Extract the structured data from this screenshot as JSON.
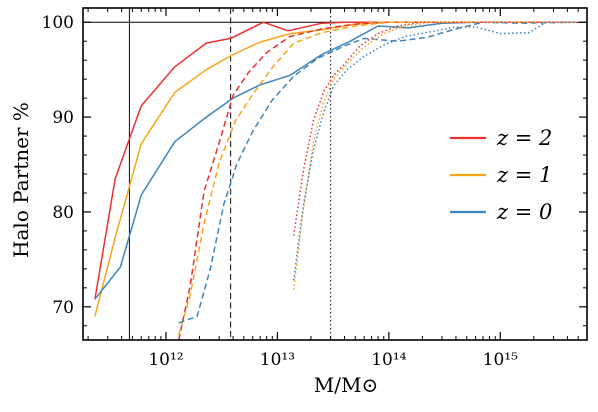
{
  "chart_data": {
    "type": "line",
    "xlabel": "M/M⊙",
    "ylabel": "Halo Partner %",
    "x_scale": "log",
    "xlim": [
      180000000000.0,
      6000000000000000.0
    ],
    "ylim": [
      66.5,
      101.5
    ],
    "x_ticks": [
      {
        "value": 1000000000000.0,
        "label": "10¹²"
      },
      {
        "value": 10000000000000.0,
        "label": "10¹³"
      },
      {
        "value": 100000000000000.0,
        "label": "10¹⁴"
      },
      {
        "value": 1000000000000000.0,
        "label": "10¹⁵"
      }
    ],
    "y_ticks": [
      70,
      80,
      90,
      100
    ],
    "hline": 100,
    "vlines": [
      {
        "x": 470000000000.0,
        "style": "solid"
      },
      {
        "x": 3800000000000.0,
        "style": "dashed"
      },
      {
        "x": 30000000000000.0,
        "style": "dotted"
      }
    ],
    "legend": {
      "position": "center-right",
      "entries": [
        {
          "label": "z = 2",
          "color": "#e8312f"
        },
        {
          "label": "z = 1",
          "color": "#f8a51c"
        },
        {
          "label": "z = 0",
          "color": "#3f84bb"
        }
      ]
    },
    "series": [
      {
        "name": "z = 2",
        "group": "solid",
        "color": "#e8312f",
        "x": [
          230000000000.0,
          350000000000.0,
          600000000000.0,
          1200000000000.0,
          2300000000000.0,
          3800000000000.0,
          7500000000000.0,
          12500000000000.0,
          25000000000000.0,
          40000000000000.0,
          80000000000000.0,
          5000000000000000.0
        ],
        "y": [
          70.8,
          83.5,
          91.2,
          95.3,
          97.8,
          98.3,
          100,
          99.1,
          99.9,
          100,
          100,
          100
        ]
      },
      {
        "name": "z = 1",
        "group": "solid",
        "color": "#f8a51c",
        "x": [
          230000000000.0,
          350000000000.0,
          600000000000.0,
          1200000000000.0,
          2300000000000.0,
          4000000000000.0,
          7000000000000.0,
          13000000000000.0,
          25000000000000.0,
          50000000000000.0,
          80000000000000.0,
          5000000000000000.0
        ],
        "y": [
          69.0,
          77.3,
          87.2,
          92.6,
          95.0,
          96.6,
          97.9,
          98.8,
          99.2,
          99.8,
          100,
          100
        ]
      },
      {
        "name": "z = 0",
        "group": "solid",
        "color": "#3f84bb",
        "x": [
          230000000000.0,
          390000000000.0,
          600000000000.0,
          1200000000000.0,
          2300000000000.0,
          4000000000000.0,
          7000000000000.0,
          13000000000000.0,
          25000000000000.0,
          45000000000000.0,
          80000000000000.0,
          150000000000000.0,
          300000000000000.0,
          600000000000000.0,
          5000000000000000.0
        ],
        "y": [
          70.8,
          74.2,
          81.8,
          87.4,
          90.0,
          92.0,
          93.4,
          94.4,
          96.6,
          98.0,
          99.6,
          99.4,
          99.9,
          100,
          100
        ]
      },
      {
        "name": "z = 2",
        "group": "dashed",
        "color": "#e8312f",
        "x": [
          1300000000000.0,
          1650000000000.0,
          2200000000000.0,
          3000000000000.0,
          4000000000000.0,
          5500000000000.0,
          8000000000000.0,
          13000000000000.0,
          25000000000000.0,
          50000000000000.0,
          100000000000000.0,
          5000000000000000.0
        ],
        "y": [
          66.5,
          72.2,
          82.2,
          87.3,
          92.3,
          94.7,
          96.8,
          98.5,
          99.3,
          99.8,
          100,
          100
        ]
      },
      {
        "name": "z = 1",
        "group": "dashed",
        "color": "#f8a51c",
        "x": [
          1300000000000.0,
          1650000000000.0,
          2200000000000.0,
          3000000000000.0,
          4200000000000.0,
          6000000000000.0,
          9000000000000.0,
          14000000000000.0,
          25000000000000.0,
          50000000000000.0,
          100000000000000.0,
          5000000000000000.0
        ],
        "y": [
          67.0,
          71.2,
          78.8,
          85.2,
          89.6,
          92.4,
          95.2,
          97.8,
          98.9,
          99.6,
          100,
          100
        ]
      },
      {
        "name": "z = 0",
        "group": "dashed",
        "color": "#3f84bb",
        "x": [
          1300000000000.0,
          1900000000000.0,
          2500000000000.0,
          3300000000000.0,
          4300000000000.0,
          6000000000000.0,
          9000000000000.0,
          14000000000000.0,
          23000000000000.0,
          40000000000000.0,
          60000000000000.0,
          120000000000000.0,
          220000000000000.0,
          400000000000000.0,
          700000000000000.0,
          1500000000000000.0,
          5000000000000000.0
        ],
        "y": [
          68.3,
          69.0,
          74.0,
          80.8,
          85.0,
          88.5,
          91.8,
          94.3,
          96.2,
          97.5,
          98.3,
          98.0,
          98.4,
          99.3,
          100,
          99.9,
          100
        ]
      },
      {
        "name": "z = 2",
        "group": "dotted",
        "color": "#e8312f",
        "x": [
          14000000000000.0,
          17000000000000.0,
          21000000000000.0,
          26000000000000.0,
          32000000000000.0,
          40000000000000.0,
          55000000000000.0,
          80000000000000.0,
          120000000000000.0,
          200000000000000.0,
          5000000000000000.0
        ],
        "y": [
          77.5,
          84.2,
          89.6,
          92.7,
          94.4,
          95.6,
          97.5,
          98.8,
          99.6,
          100,
          100
        ]
      },
      {
        "name": "z = 1",
        "group": "dotted",
        "color": "#f8a51c",
        "x": [
          14000000000000.0,
          17000000000000.0,
          21000000000000.0,
          26000000000000.0,
          32000000000000.0,
          42000000000000.0,
          60000000000000.0,
          90000000000000.0,
          140000000000000.0,
          250000000000000.0,
          5000000000000000.0
        ],
        "y": [
          71.8,
          80.0,
          87.3,
          91.6,
          94.0,
          95.6,
          97.4,
          98.8,
          99.6,
          100,
          100
        ]
      },
      {
        "name": "z = 0",
        "group": "dotted",
        "color": "#3f84bb",
        "x": [
          14000000000000.0,
          17000000000000.0,
          21000000000000.0,
          26000000000000.0,
          32000000000000.0,
          42000000000000.0,
          60000000000000.0,
          90000000000000.0,
          140000000000000.0,
          240000000000000.0,
          400000000000000.0,
          600000000000000.0,
          1000000000000000.0,
          1800000000000000.0,
          2600000000000000.0,
          5000000000000000.0
        ],
        "y": [
          72.8,
          80.5,
          86.5,
          90.5,
          93.3,
          95.0,
          96.4,
          97.6,
          98.5,
          99.0,
          99.5,
          99.5,
          98.8,
          98.9,
          100,
          100
        ]
      }
    ]
  }
}
